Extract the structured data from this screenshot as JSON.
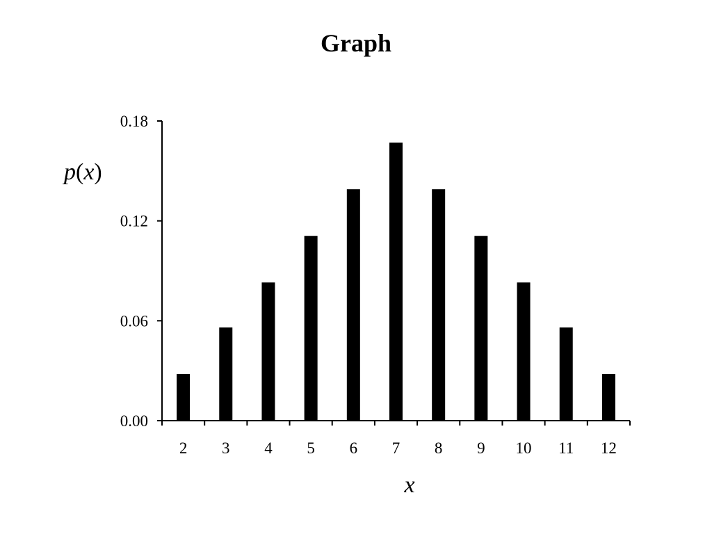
{
  "chart_data": {
    "type": "bar",
    "title": "Graph",
    "xlabel": "x",
    "ylabel": "p(x)",
    "categories": [
      "2",
      "3",
      "4",
      "5",
      "6",
      "7",
      "8",
      "9",
      "10",
      "11",
      "12"
    ],
    "values": [
      0.028,
      0.056,
      0.083,
      0.111,
      0.139,
      0.167,
      0.139,
      0.111,
      0.083,
      0.056,
      0.028
    ],
    "ylim": [
      0,
      0.18
    ],
    "yticks": [
      "0.00",
      "0.06",
      "0.12",
      "0.18"
    ],
    "grid": false,
    "legend": "none",
    "colors": {
      "bar": "#000000",
      "axis": "#000000",
      "background": "#ffffff"
    }
  }
}
